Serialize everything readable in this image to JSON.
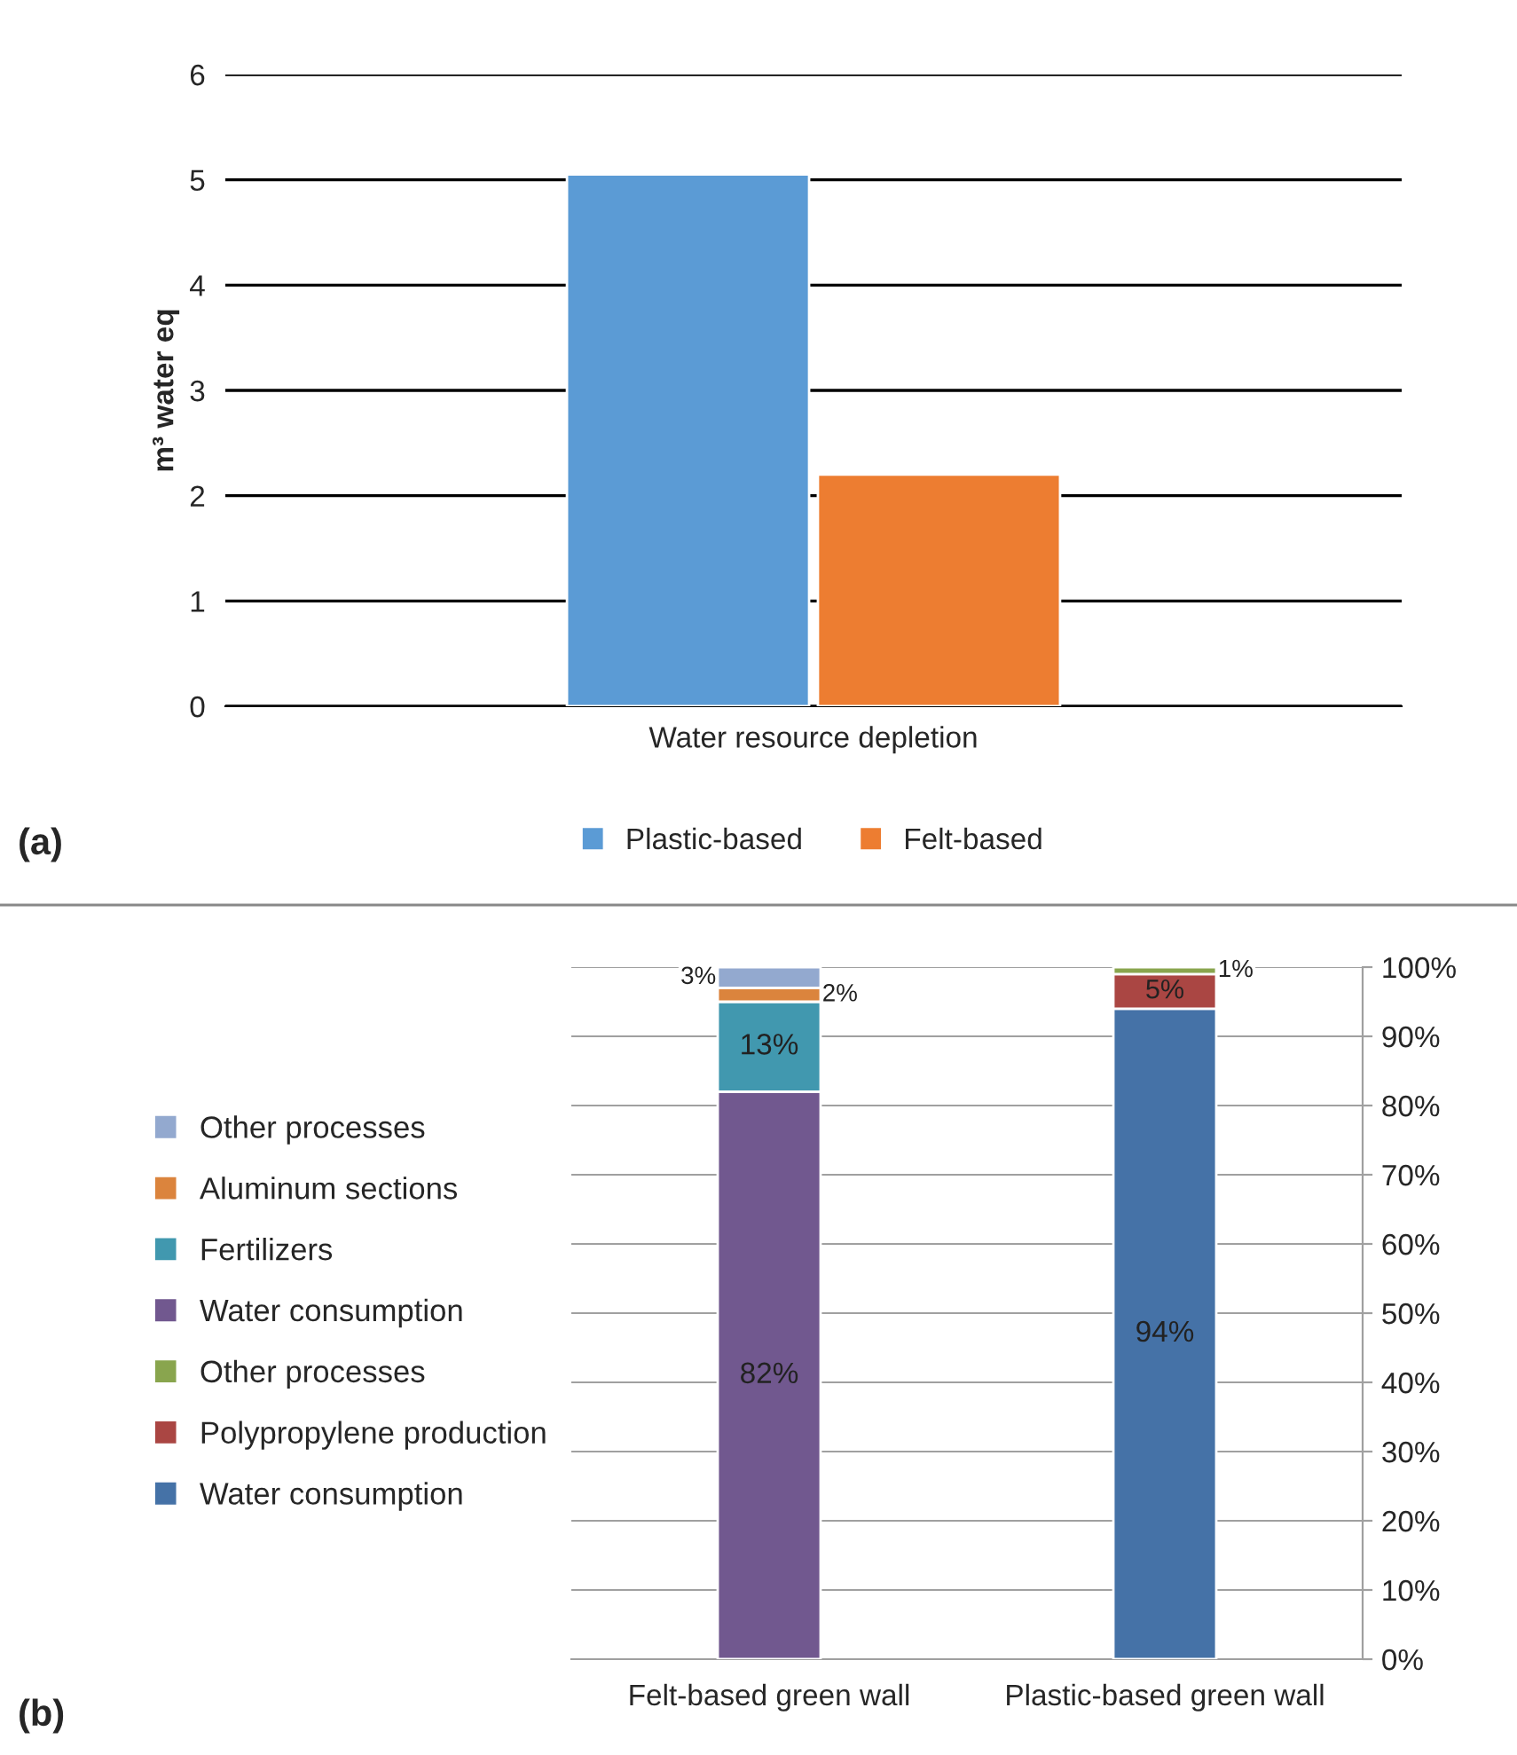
{
  "chart_data": [
    {
      "type": "bar",
      "categories": [
        "Water resource depletion"
      ],
      "ylabel": "m³ water eq",
      "ylim": [
        0,
        6
      ],
      "yticks": [
        0,
        1,
        2,
        3,
        4,
        5,
        6
      ],
      "grid": "y",
      "legend": "bottom",
      "annotations": [
        "(a)"
      ],
      "series": [
        {
          "name": "Plastic-based",
          "color": "#5b9bd5",
          "values": [
            5.05
          ]
        },
        {
          "name": "Felt-based",
          "color": "#ed7d31",
          "values": [
            2.2
          ]
        }
      ]
    },
    {
      "type": "bar",
      "stacked": true,
      "categories": [
        "Felt-based green wall",
        "Plastic-based green wall"
      ],
      "ylim": [
        0,
        100
      ],
      "yticks": [
        {
          "value": 0,
          "label": "0%"
        },
        {
          "value": 10,
          "label": "10%"
        },
        {
          "value": 20,
          "label": "20%"
        },
        {
          "value": 30,
          "label": "30%"
        },
        {
          "value": 40,
          "label": "40%"
        },
        {
          "value": 50,
          "label": "50%"
        },
        {
          "value": 60,
          "label": "60%"
        },
        {
          "value": 70,
          "label": "70%"
        },
        {
          "value": 80,
          "label": "80%"
        },
        {
          "value": 90,
          "label": "90%"
        },
        {
          "value": 100,
          "label": "100%"
        }
      ],
      "grid": "y",
      "legend": "left",
      "annotations": [
        "(b)"
      ],
      "series": [
        {
          "name": "Water consumption",
          "color": "#4572a7",
          "values": [
            null,
            94
          ],
          "value_labels": [
            null,
            "94%"
          ]
        },
        {
          "name": "Polypropylene production",
          "color": "#aa4643",
          "values": [
            null,
            5
          ],
          "value_labels": [
            null,
            "5%"
          ]
        },
        {
          "name": "Other processes",
          "color": "#89a54e",
          "values": [
            null,
            1
          ],
          "value_labels": [
            null,
            "1%"
          ]
        },
        {
          "name": "Water consumption",
          "color": "#71588f",
          "values": [
            82,
            null
          ],
          "value_labels": [
            "82%",
            null
          ]
        },
        {
          "name": "Fertilizers",
          "color": "#4198af",
          "values": [
            13,
            null
          ],
          "value_labels": [
            "13%",
            null
          ]
        },
        {
          "name": "Aluminum sections",
          "color": "#db843d",
          "values": [
            2,
            null
          ],
          "value_labels": [
            "2%",
            null
          ]
        },
        {
          "name": "Other processes",
          "color": "#93a9cf",
          "values": [
            3,
            null
          ],
          "value_labels": [
            "3%",
            null
          ]
        }
      ]
    }
  ]
}
